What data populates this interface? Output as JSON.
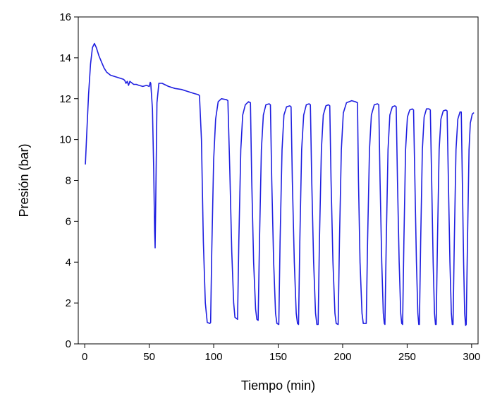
{
  "chart_data": {
    "type": "line",
    "title": "",
    "xlabel": "Tiempo (min)",
    "ylabel": "Presión (bar)",
    "xlim": [
      -5,
      305
    ],
    "ylim": [
      0,
      16
    ],
    "xticks": [
      0,
      50,
      100,
      150,
      200,
      250,
      300
    ],
    "yticks": [
      0,
      2,
      4,
      6,
      8,
      10,
      12,
      14,
      16
    ],
    "grid": false,
    "legend": "none",
    "colors": {
      "series": "#1f1fe0",
      "axis": "#000000",
      "background": "#ffffff"
    },
    "series": [
      {
        "values": [
          [
            0.5,
            8.8
          ],
          [
            1.5,
            10.2
          ],
          [
            3,
            12.2
          ],
          [
            4.5,
            13.7
          ],
          [
            6,
            14.5
          ],
          [
            7.5,
            14.7
          ],
          [
            9,
            14.5
          ],
          [
            11,
            14.1
          ],
          [
            13,
            13.8
          ],
          [
            15,
            13.5
          ],
          [
            17,
            13.3
          ],
          [
            20,
            13.15
          ],
          [
            25,
            13.05
          ],
          [
            30,
            12.95
          ],
          [
            31,
            12.9
          ],
          [
            32,
            12.75
          ],
          [
            33,
            12.85
          ],
          [
            34,
            12.65
          ],
          [
            35,
            12.85
          ],
          [
            38,
            12.7
          ],
          [
            40,
            12.7
          ],
          [
            42,
            12.65
          ],
          [
            45,
            12.6
          ],
          [
            48,
            12.65
          ],
          [
            50,
            12.6
          ],
          [
            50.8,
            12.8
          ],
          [
            51.2,
            12.75
          ],
          [
            52.5,
            11.5
          ],
          [
            53.5,
            8.5
          ],
          [
            54.2,
            5.5
          ],
          [
            54.6,
            4.7
          ],
          [
            55,
            6.5
          ],
          [
            56,
            11.8
          ],
          [
            57.5,
            12.75
          ],
          [
            60,
            12.75
          ],
          [
            65,
            12.6
          ],
          [
            70,
            12.5
          ],
          [
            75,
            12.45
          ],
          [
            80,
            12.35
          ],
          [
            85,
            12.25
          ],
          [
            88,
            12.2
          ],
          [
            89,
            12.15
          ],
          [
            90.5,
            10.0
          ],
          [
            92,
            5.0
          ],
          [
            93.5,
            2.0
          ],
          [
            95,
            1.05
          ],
          [
            97,
            1.0
          ],
          [
            97.6,
            1.05
          ],
          [
            98.5,
            4.5
          ],
          [
            100,
            9.0
          ],
          [
            101.5,
            11.0
          ],
          [
            103.5,
            11.85
          ],
          [
            106,
            12.0
          ],
          [
            110,
            11.95
          ],
          [
            111,
            11.9
          ],
          [
            112.5,
            8.5
          ],
          [
            114,
            4.5
          ],
          [
            115.5,
            2.0
          ],
          [
            116.5,
            1.3
          ],
          [
            118.5,
            1.2
          ],
          [
            119.5,
            5.0
          ],
          [
            121,
            9.5
          ],
          [
            122.5,
            11.2
          ],
          [
            124.5,
            11.7
          ],
          [
            127,
            11.85
          ],
          [
            128.5,
            11.8
          ],
          [
            129.5,
            8.0
          ],
          [
            131,
            4.0
          ],
          [
            132.5,
            1.7
          ],
          [
            133.5,
            1.2
          ],
          [
            134.5,
            1.15
          ],
          [
            135.5,
            5.0
          ],
          [
            137,
            9.5
          ],
          [
            138.5,
            11.2
          ],
          [
            140.5,
            11.7
          ],
          [
            143,
            11.75
          ],
          [
            144,
            11.7
          ],
          [
            145,
            8.0
          ],
          [
            146.5,
            4.0
          ],
          [
            148,
            1.5
          ],
          [
            149,
            1.0
          ],
          [
            150.5,
            0.95
          ],
          [
            151.5,
            5.0
          ],
          [
            153,
            9.5
          ],
          [
            154.5,
            11.2
          ],
          [
            156.5,
            11.6
          ],
          [
            159,
            11.65
          ],
          [
            160,
            11.6
          ],
          [
            161,
            8.0
          ],
          [
            162.5,
            4.0
          ],
          [
            164,
            1.5
          ],
          [
            165,
            1.0
          ],
          [
            165.8,
            0.95
          ],
          [
            166.8,
            5.0
          ],
          [
            168.2,
            9.5
          ],
          [
            169.8,
            11.2
          ],
          [
            171.8,
            11.7
          ],
          [
            174,
            11.75
          ],
          [
            175,
            11.7
          ],
          [
            176,
            8.0
          ],
          [
            177.5,
            4.0
          ],
          [
            179,
            1.5
          ],
          [
            180,
            0.95
          ],
          [
            181,
            0.95
          ],
          [
            182,
            5.0
          ],
          [
            183.5,
            9.5
          ],
          [
            185,
            11.2
          ],
          [
            187,
            11.65
          ],
          [
            189,
            11.7
          ],
          [
            190,
            11.65
          ],
          [
            191,
            8.0
          ],
          [
            192.5,
            4.0
          ],
          [
            194,
            1.5
          ],
          [
            195,
            1.0
          ],
          [
            196.5,
            0.95
          ],
          [
            197.5,
            5.0
          ],
          [
            199,
            9.5
          ],
          [
            200.5,
            11.3
          ],
          [
            203,
            11.8
          ],
          [
            207,
            11.9
          ],
          [
            210,
            11.85
          ],
          [
            211.5,
            11.8
          ],
          [
            212.3,
            8.0
          ],
          [
            213.5,
            4.0
          ],
          [
            215,
            1.5
          ],
          [
            216,
            1.0
          ],
          [
            218.3,
            1.0
          ],
          [
            219.3,
            5.0
          ],
          [
            220.8,
            9.5
          ],
          [
            222.3,
            11.2
          ],
          [
            224.5,
            11.7
          ],
          [
            227,
            11.75
          ],
          [
            228,
            11.7
          ],
          [
            229,
            8.0
          ],
          [
            230.3,
            4.0
          ],
          [
            231.5,
            1.5
          ],
          [
            232.3,
            1.0
          ],
          [
            232.8,
            0.95
          ],
          [
            233.8,
            5.0
          ],
          [
            235.2,
            9.5
          ],
          [
            236.6,
            11.2
          ],
          [
            238.5,
            11.6
          ],
          [
            240.5,
            11.65
          ],
          [
            241.5,
            11.6
          ],
          [
            242.5,
            8.0
          ],
          [
            243.8,
            4.0
          ],
          [
            245,
            1.5
          ],
          [
            245.8,
            1.0
          ],
          [
            246.5,
            0.95
          ],
          [
            247.5,
            5.0
          ],
          [
            248.8,
            9.5
          ],
          [
            250.2,
            11.1
          ],
          [
            252,
            11.45
          ],
          [
            254,
            11.5
          ],
          [
            255,
            11.45
          ],
          [
            256,
            8.0
          ],
          [
            257.2,
            4.0
          ],
          [
            258.3,
            1.5
          ],
          [
            259,
            0.95
          ],
          [
            259.5,
            0.95
          ],
          [
            260.5,
            5.0
          ],
          [
            261.8,
            9.5
          ],
          [
            263.2,
            11.1
          ],
          [
            265,
            11.5
          ],
          [
            267,
            11.5
          ],
          [
            268,
            11.45
          ],
          [
            269,
            8.0
          ],
          [
            270.2,
            4.0
          ],
          [
            271.2,
            1.5
          ],
          [
            272,
            0.95
          ],
          [
            272.5,
            0.95
          ],
          [
            273.5,
            5.0
          ],
          [
            274.8,
            9.5
          ],
          [
            276.2,
            11.0
          ],
          [
            278,
            11.4
          ],
          [
            280,
            11.45
          ],
          [
            281,
            11.4
          ],
          [
            282,
            8.0
          ],
          [
            283.2,
            4.0
          ],
          [
            284.3,
            1.5
          ],
          [
            285,
            0.95
          ],
          [
            285.6,
            0.95
          ],
          [
            286.6,
            5.0
          ],
          [
            287.9,
            9.5
          ],
          [
            289.3,
            11.0
          ],
          [
            291,
            11.35
          ],
          [
            292,
            11.35
          ],
          [
            292.8,
            8.0
          ],
          [
            293.8,
            4.0
          ],
          [
            294.6,
            1.5
          ],
          [
            295.3,
            0.9
          ],
          [
            295.8,
            0.95
          ],
          [
            296.8,
            5.0
          ],
          [
            298,
            9.5
          ],
          [
            299,
            10.8
          ],
          [
            300.5,
            11.25
          ],
          [
            301.5,
            11.3
          ]
        ]
      }
    ]
  }
}
